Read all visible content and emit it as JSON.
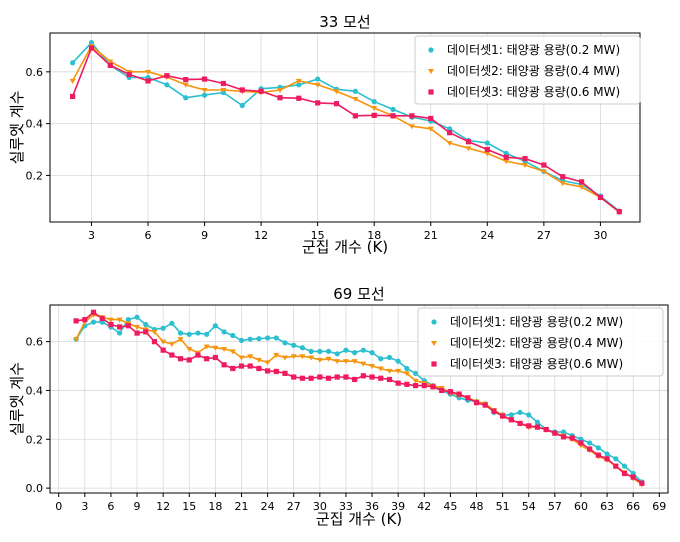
{
  "colors": {
    "s1": "#2bbfcf",
    "s2": "#f5950f",
    "s3": "#ee1b5e",
    "grid": "#d9d9d9",
    "axis": "#000000"
  },
  "chart_data": [
    {
      "type": "line",
      "title": "33 모선",
      "xlabel": "군집 개수 (K)",
      "ylabel": "실루엣 계수",
      "xlim": [
        0.8,
        32.1
      ],
      "ylim": [
        0.02,
        0.75
      ],
      "xticks": [
        3,
        6,
        9,
        12,
        15,
        18,
        21,
        24,
        27,
        30
      ],
      "xtick_labels": [
        "3",
        "6",
        "9",
        "12",
        "15",
        "18",
        "21",
        "24",
        "27",
        "30"
      ],
      "yticks": [
        0.2,
        0.4,
        0.6
      ],
      "ytick_labels": [
        "0.2",
        "0.4",
        "0.6"
      ],
      "grid": true,
      "legend_position": "top-right",
      "x": [
        2,
        3,
        4,
        5,
        6,
        7,
        8,
        9,
        10,
        11,
        12,
        13,
        14,
        15,
        16,
        17,
        18,
        19,
        20,
        21,
        22,
        23,
        24,
        25,
        26,
        27,
        28,
        29,
        30,
        31
      ],
      "series": [
        {
          "name": "데이터셋1: 태양광 용량(0.2 MW)",
          "marker": "circle",
          "values": [
            0.635,
            0.713,
            0.625,
            0.578,
            0.578,
            0.55,
            0.5,
            0.51,
            0.52,
            0.47,
            0.535,
            0.54,
            0.55,
            0.572,
            0.533,
            0.525,
            0.485,
            0.455,
            0.425,
            0.41,
            0.38,
            0.335,
            0.325,
            0.285,
            0.255,
            0.215,
            0.18,
            0.165,
            0.12,
            0.062
          ]
        },
        {
          "name": "데이터셋2: 태양광 용량(0.4 MW)",
          "marker": "triangle",
          "values": [
            0.565,
            0.7,
            0.64,
            0.6,
            0.6,
            0.58,
            0.55,
            0.53,
            0.53,
            0.525,
            0.52,
            0.53,
            0.565,
            0.55,
            0.525,
            0.495,
            0.46,
            0.43,
            0.39,
            0.38,
            0.325,
            0.305,
            0.285,
            0.255,
            0.24,
            0.215,
            0.17,
            0.155,
            0.115,
            0.058
          ]
        },
        {
          "name": "데이터셋3: 태양광 용량(0.6 MW)",
          "marker": "square",
          "values": [
            0.505,
            0.692,
            0.625,
            0.59,
            0.565,
            0.585,
            0.57,
            0.572,
            0.555,
            0.53,
            0.525,
            0.5,
            0.498,
            0.48,
            0.477,
            0.43,
            0.432,
            0.43,
            0.43,
            0.42,
            0.365,
            0.33,
            0.3,
            0.27,
            0.265,
            0.24,
            0.195,
            0.175,
            0.115,
            0.06
          ]
        }
      ]
    },
    {
      "type": "line",
      "title": "69 모선",
      "xlabel": "군집 개수 (K)",
      "ylabel": "실루엣 계수",
      "xlim": [
        -1.0,
        70.0
      ],
      "ylim": [
        -0.02,
        0.75
      ],
      "xticks": [
        0,
        3,
        6,
        9,
        12,
        15,
        18,
        21,
        24,
        27,
        30,
        33,
        36,
        39,
        42,
        45,
        48,
        51,
        54,
        57,
        60,
        63,
        66,
        69
      ],
      "xtick_labels": [
        "0",
        "3",
        "6",
        "9",
        "12",
        "15",
        "18",
        "21",
        "24",
        "27",
        "30",
        "33",
        "36",
        "39",
        "42",
        "45",
        "48",
        "51",
        "54",
        "57",
        "60",
        "63",
        "66",
        "69"
      ],
      "yticks": [
        0.0,
        0.2,
        0.4,
        0.6
      ],
      "ytick_labels": [
        "0.0",
        "0.2",
        "0.4",
        "0.6"
      ],
      "grid": true,
      "legend_position": "top-right",
      "x": [
        2,
        3,
        4,
        5,
        6,
        7,
        8,
        9,
        10,
        11,
        12,
        13,
        14,
        15,
        16,
        17,
        18,
        19,
        20,
        21,
        22,
        23,
        24,
        25,
        26,
        27,
        28,
        29,
        30,
        31,
        32,
        33,
        34,
        35,
        36,
        37,
        38,
        39,
        40,
        41,
        42,
        43,
        44,
        45,
        46,
        47,
        48,
        49,
        50,
        51,
        52,
        53,
        54,
        55,
        56,
        57,
        58,
        59,
        60,
        61,
        62,
        63,
        64,
        65,
        66,
        67
      ],
      "series": [
        {
          "name": "데이터셋1: 태양광 용량(0.2 MW)",
          "marker": "circle",
          "values": [
            0.61,
            0.665,
            0.68,
            0.68,
            0.66,
            0.635,
            0.69,
            0.7,
            0.67,
            0.65,
            0.655,
            0.675,
            0.635,
            0.63,
            0.635,
            0.63,
            0.665,
            0.64,
            0.625,
            0.605,
            0.61,
            0.612,
            0.615,
            0.615,
            0.595,
            0.585,
            0.575,
            0.56,
            0.56,
            0.56,
            0.55,
            0.565,
            0.555,
            0.565,
            0.555,
            0.53,
            0.535,
            0.52,
            0.49,
            0.47,
            0.44,
            0.42,
            0.4,
            0.385,
            0.37,
            0.36,
            0.355,
            0.345,
            0.31,
            0.3,
            0.3,
            0.31,
            0.3,
            0.27,
            0.24,
            0.23,
            0.23,
            0.215,
            0.2,
            0.185,
            0.165,
            0.14,
            0.12,
            0.09,
            0.06,
            0.025
          ]
        },
        {
          "name": "데이터셋2: 태양광 용량(0.4 MW)",
          "marker": "triangle",
          "values": [
            0.61,
            0.68,
            0.71,
            0.7,
            0.69,
            0.69,
            0.675,
            0.66,
            0.65,
            0.64,
            0.6,
            0.59,
            0.61,
            0.57,
            0.555,
            0.58,
            0.575,
            0.57,
            0.56,
            0.535,
            0.54,
            0.525,
            0.515,
            0.545,
            0.535,
            0.54,
            0.54,
            0.535,
            0.525,
            0.53,
            0.52,
            0.52,
            0.52,
            0.51,
            0.5,
            0.49,
            0.48,
            0.48,
            0.47,
            0.44,
            0.43,
            0.42,
            0.41,
            0.39,
            0.38,
            0.37,
            0.355,
            0.345,
            0.32,
            0.3,
            0.28,
            0.265,
            0.25,
            0.25,
            0.24,
            0.225,
            0.215,
            0.2,
            0.175,
            0.155,
            0.13,
            0.115,
            0.09,
            0.065,
            0.04,
            0.015
          ]
        },
        {
          "name": "데이터셋3: 태양광 용량(0.6 MW)",
          "marker": "square",
          "values": [
            0.685,
            0.69,
            0.72,
            0.695,
            0.67,
            0.66,
            0.665,
            0.635,
            0.64,
            0.6,
            0.565,
            0.545,
            0.53,
            0.525,
            0.545,
            0.53,
            0.535,
            0.505,
            0.49,
            0.5,
            0.5,
            0.49,
            0.48,
            0.478,
            0.47,
            0.455,
            0.45,
            0.45,
            0.455,
            0.45,
            0.455,
            0.455,
            0.445,
            0.46,
            0.455,
            0.45,
            0.445,
            0.43,
            0.425,
            0.42,
            0.42,
            0.415,
            0.4,
            0.395,
            0.385,
            0.37,
            0.35,
            0.34,
            0.315,
            0.295,
            0.28,
            0.265,
            0.255,
            0.25,
            0.24,
            0.225,
            0.21,
            0.205,
            0.185,
            0.16,
            0.135,
            0.12,
            0.09,
            0.06,
            0.045,
            0.02
          ]
        }
      ]
    }
  ]
}
